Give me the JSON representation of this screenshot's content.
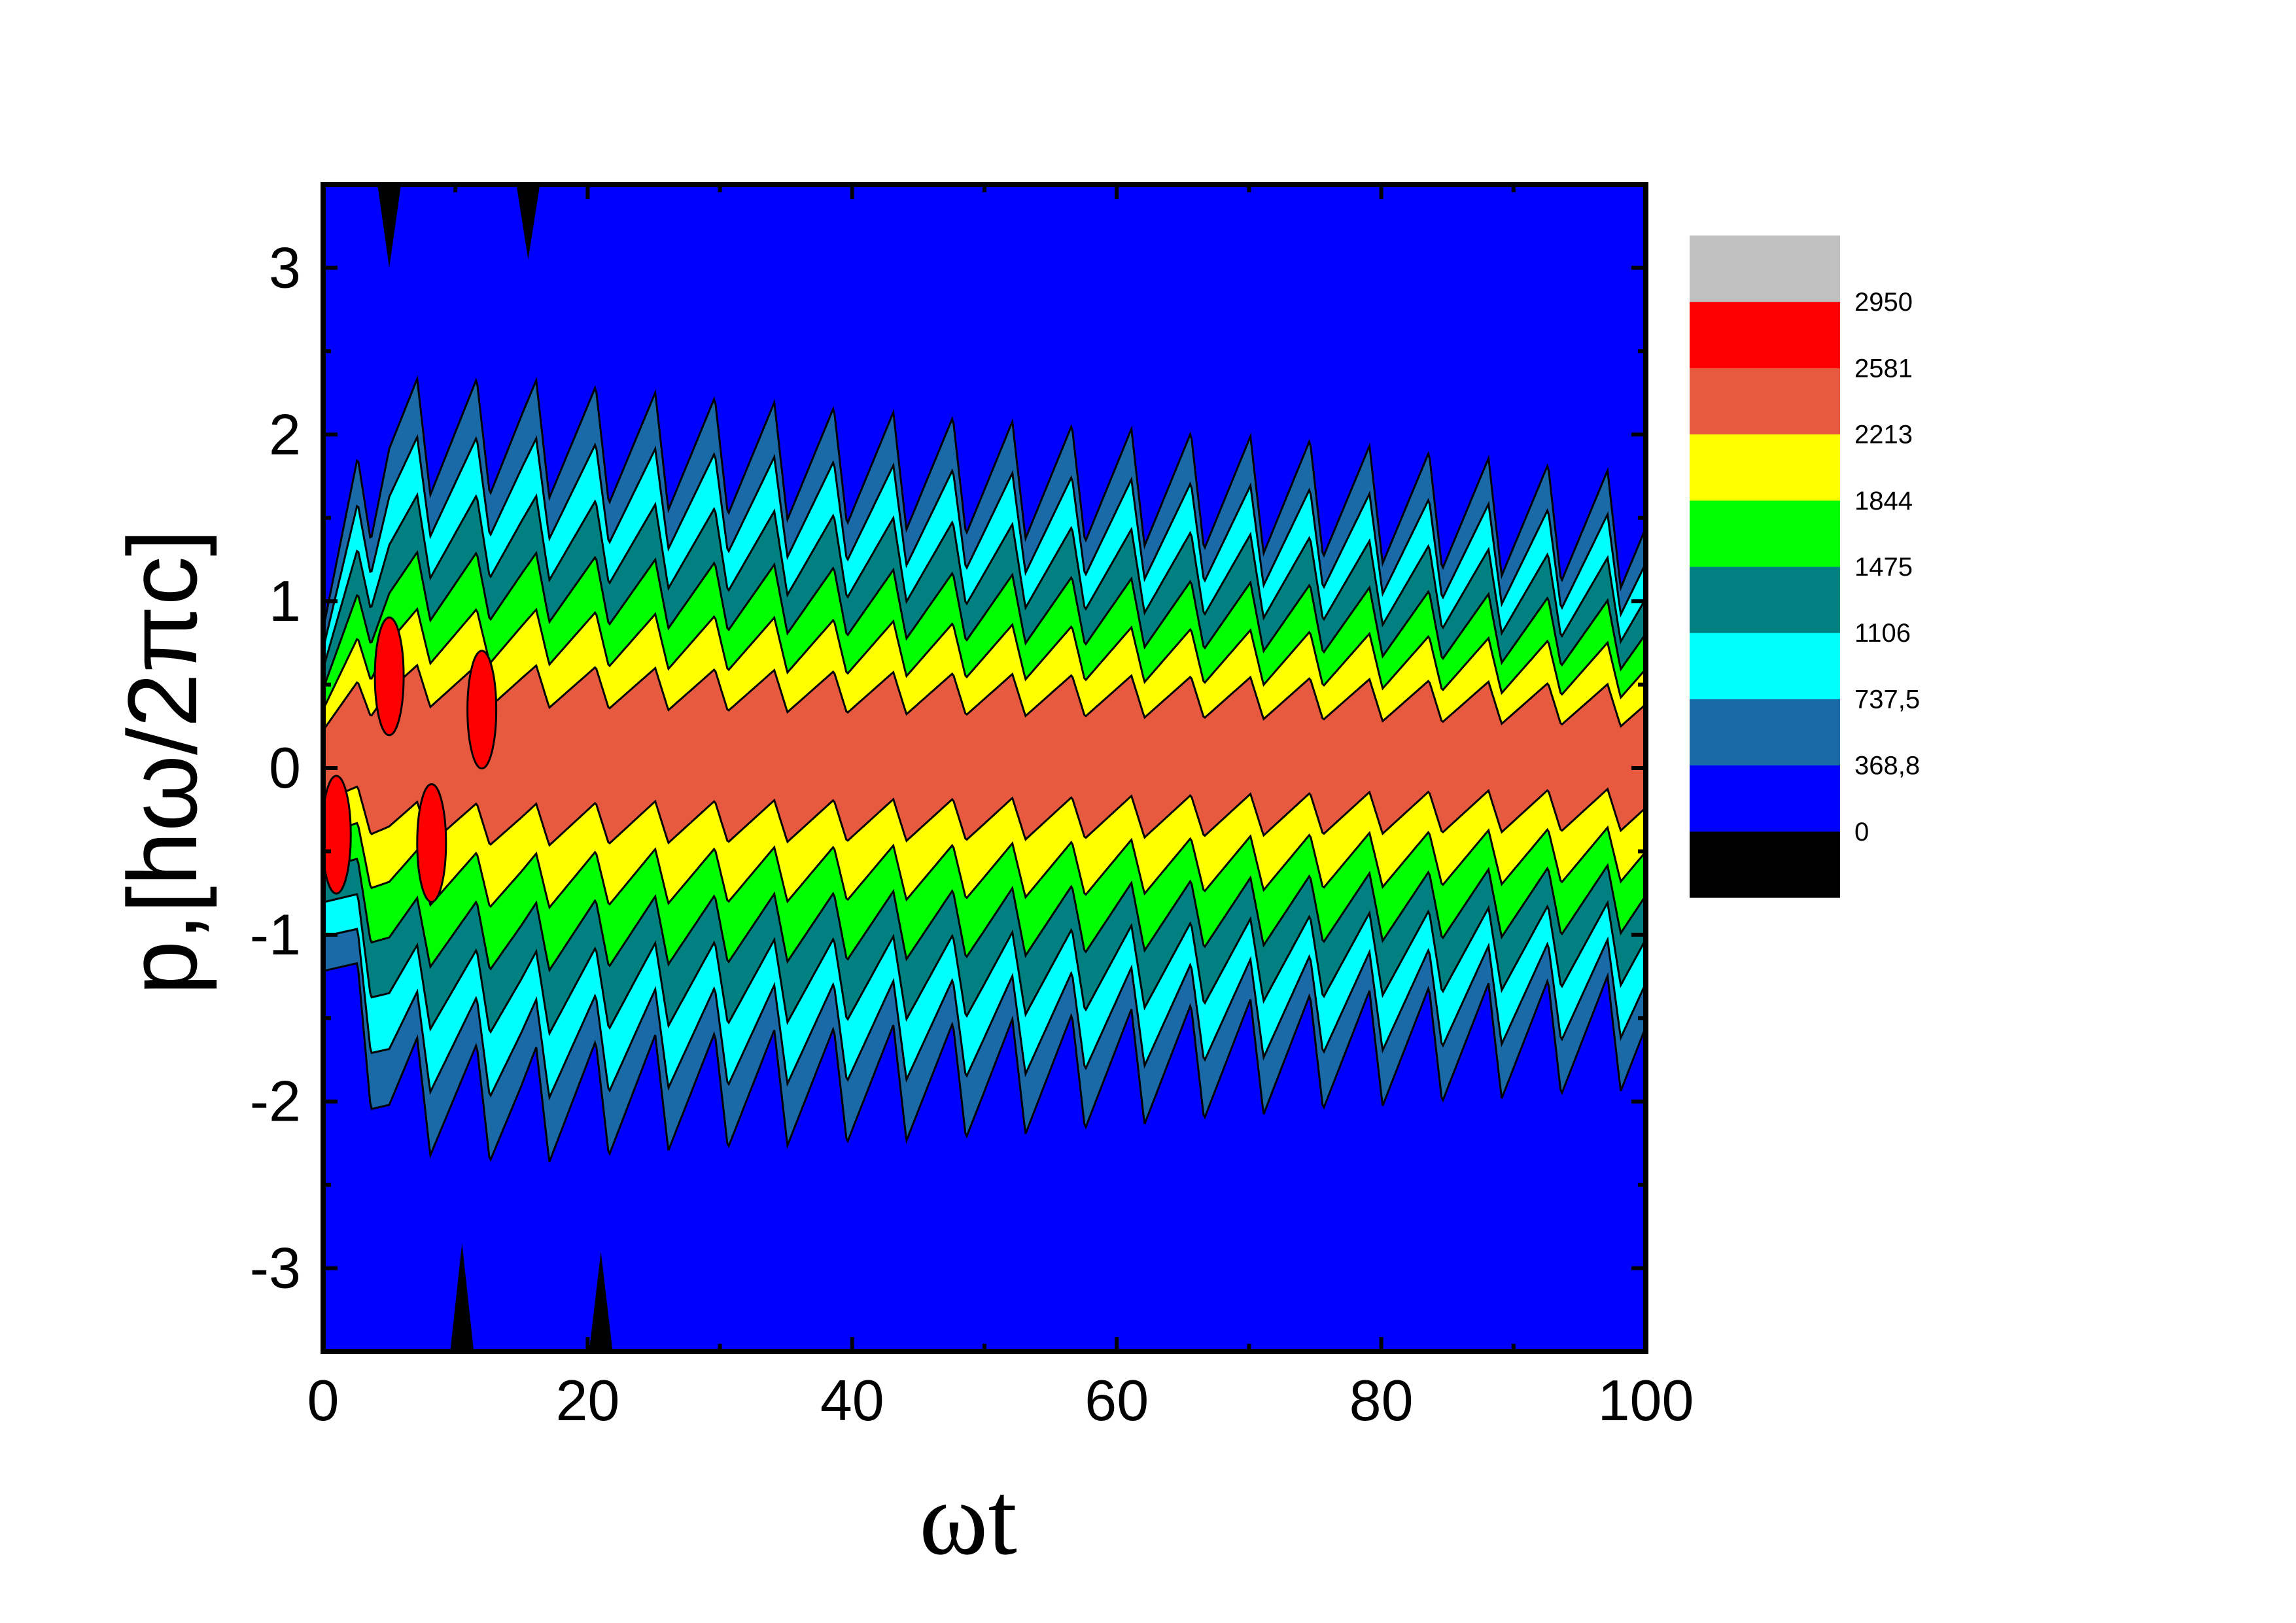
{
  "chart_data": {
    "type": "heatmap",
    "subtype": "filled-contour",
    "xlabel": "ωt",
    "ylabel": "p,[hω/2πc]",
    "xlim": [
      0,
      100
    ],
    "ylim": [
      -3.5,
      3.5
    ],
    "xticks": [
      0,
      20,
      40,
      60,
      80,
      100
    ],
    "xtick_labels": [
      "0",
      "20",
      "40",
      "60",
      "80",
      "100"
    ],
    "yticks": [
      -3,
      -2,
      -1,
      0,
      1,
      2,
      3
    ],
    "ytick_labels": [
      "-3",
      "-2",
      "-1",
      "0",
      "1",
      "2",
      "3"
    ],
    "grid": false,
    "colorbar": {
      "placement": "right",
      "levels": [
        0,
        368.8,
        737.5,
        1106,
        1475,
        1844,
        2213,
        2581,
        2950
      ],
      "level_labels": [
        "0",
        "368,8",
        "737,5",
        "1106",
        "1475",
        "1844",
        "2213",
        "2581",
        "2950"
      ],
      "colors": [
        "#000000",
        "#0000ff",
        "#1a6aa8",
        "#00ffff",
        "#008080",
        "#00ff00",
        "#ffff00",
        "#e85a40",
        "#ff0000",
        "#c0c0c0"
      ]
    },
    "contour_band_colors_inner_to_outer": [
      "#e85a40",
      "#ffff00",
      "#00ff00",
      "#008080",
      "#00ffff",
      "#1a6aa8",
      "#0000ff"
    ],
    "background_color": "#0000ff",
    "peak_color": "#ff0000",
    "oscillation_period_wt": 4.5,
    "envelope_center_p": [
      {
        "x": 0,
        "y": 0.1
      },
      {
        "x": 100,
        "y": 0.1
      }
    ],
    "envelope_half_width_top_p": [
      {
        "x": 0,
        "y": 1.2
      },
      {
        "x": 5,
        "y": 2.4
      },
      {
        "x": 15,
        "y": 2.4
      },
      {
        "x": 25,
        "y": 2.3
      },
      {
        "x": 50,
        "y": 2.1
      },
      {
        "x": 75,
        "y": 1.95
      },
      {
        "x": 100,
        "y": 1.7
      }
    ],
    "envelope_half_width_bottom_p": [
      {
        "x": 0,
        "y": -1.3
      },
      {
        "x": 5,
        "y": -2.4
      },
      {
        "x": 15,
        "y": -2.5
      },
      {
        "x": 25,
        "y": -2.4
      },
      {
        "x": 50,
        "y": -2.3
      },
      {
        "x": 75,
        "y": -2.1
      },
      {
        "x": 100,
        "y": -1.95
      }
    ]
  }
}
